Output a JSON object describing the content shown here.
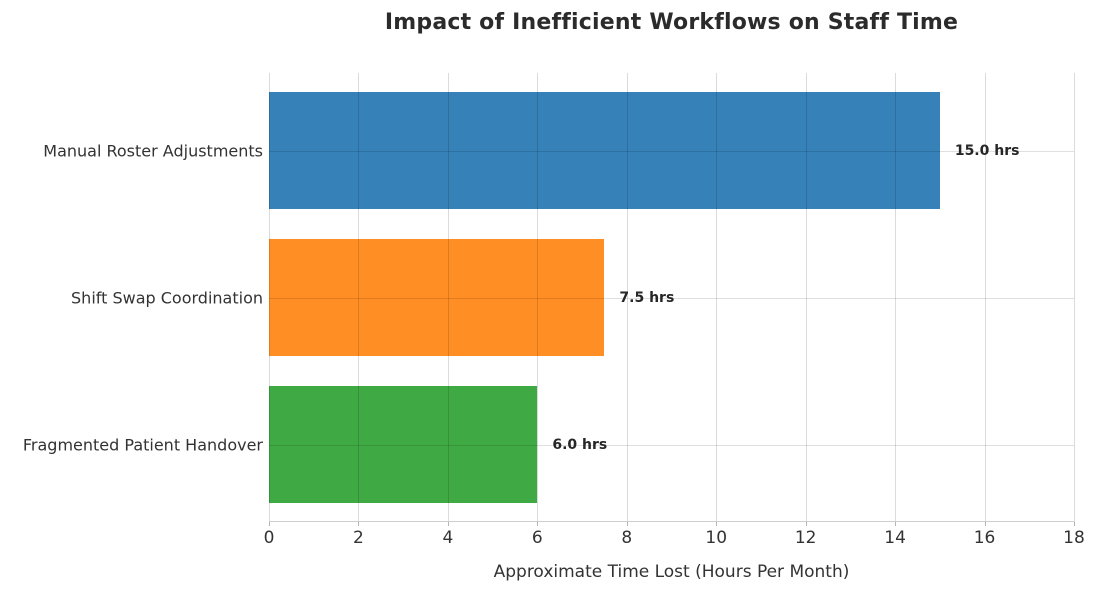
{
  "chart_data": {
    "type": "bar",
    "orientation": "horizontal",
    "title": "Impact of Inefficient Workflows on Staff Time",
    "xlabel": "Approximate Time Lost (Hours Per Month)",
    "ylabel": "",
    "categories": [
      "Manual Roster Adjustments",
      "Shift Swap Coordination",
      "Fragmented Patient Handover"
    ],
    "values": [
      15.0,
      7.5,
      6.0
    ],
    "value_labels": [
      "15.0 hrs",
      "7.5 hrs",
      "6.0 hrs"
    ],
    "bar_colors": [
      "#3581b8",
      "#ff8e24",
      "#3fa944"
    ],
    "xlim": [
      0,
      18
    ],
    "xticks": [
      0,
      2,
      4,
      6,
      8,
      10,
      12,
      14,
      16,
      18
    ],
    "grid": true,
    "legend": "none",
    "background_color": "#ffffff",
    "grid_color": "#d9d9d9",
    "title_color": "#2b2b2b",
    "tick_label_color": "#333333",
    "value_label_color": "#262626"
  }
}
